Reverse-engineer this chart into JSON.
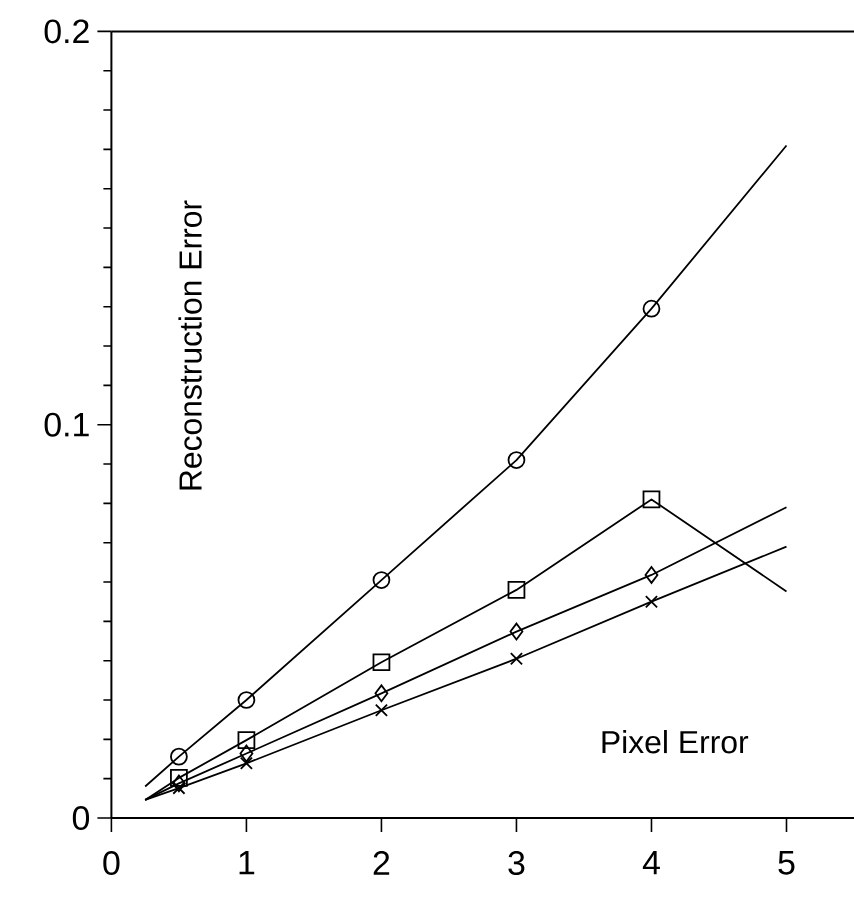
{
  "chart_data": {
    "type": "line",
    "xlabel": "Pixel Error",
    "ylabel": "Reconstruction Error",
    "xlim": [
      0,
      5.5
    ],
    "ylim": [
      0,
      0.2
    ],
    "xticks": [
      0,
      1,
      2,
      3,
      4,
      5
    ],
    "yticks": [
      0,
      {
        "value": 0.01,
        "label": null
      },
      {
        "value": 0.02,
        "label": null
      },
      {
        "value": 0.03,
        "label": null
      },
      {
        "value": 0.04,
        "label": null
      },
      {
        "value": 0.05,
        "label": null
      },
      {
        "value": 0.06,
        "label": null
      },
      {
        "value": 0.07,
        "label": null
      },
      {
        "value": 0.08,
        "label": null
      },
      {
        "value": 0.09,
        "label": null
      },
      0.1,
      {
        "value": 0.11,
        "label": null
      },
      {
        "value": 0.12,
        "label": null
      },
      {
        "value": 0.13,
        "label": null
      },
      {
        "value": 0.14,
        "label": null
      },
      {
        "value": 0.15,
        "label": null
      },
      {
        "value": 0.16,
        "label": null
      },
      {
        "value": 0.17,
        "label": null
      },
      {
        "value": 0.18,
        "label": null
      },
      {
        "value": 0.19,
        "label": null
      },
      0.2
    ],
    "grid": false,
    "series": [
      {
        "marker": "none",
        "color": "#000000",
        "x": [
          0.25,
          0.5,
          1,
          2,
          3,
          4,
          5
        ],
        "values": [
          0.008,
          0.0156,
          0.03,
          0.0605,
          0.091,
          0.1295,
          0.171
        ]
      },
      {
        "type": "scatter",
        "marker": "circle",
        "color": "#000000",
        "x": [
          0.5,
          1,
          2,
          3,
          4
        ],
        "values": [
          0.0156,
          0.03,
          0.0605,
          0.091,
          0.1295
        ]
      },
      {
        "marker": "none",
        "color": "#000000",
        "x": [
          0.25,
          0.5,
          1,
          2,
          3,
          4,
          5
        ],
        "values": [
          0.0046,
          0.0102,
          0.0198,
          0.0396,
          0.058,
          0.081,
          0.0576
        ]
      },
      {
        "type": "scatter",
        "marker": "square",
        "color": "#000000",
        "x": [
          0.5,
          1,
          2,
          3,
          4
        ],
        "values": [
          0.0102,
          0.0198,
          0.0396,
          0.058,
          0.081
        ]
      },
      {
        "marker": "none",
        "color": "#000000",
        "x": [
          0.25,
          0.5,
          1,
          2,
          3,
          4,
          5
        ],
        "values": [
          0.0046,
          0.0088,
          0.0164,
          0.0317,
          0.0474,
          0.0618,
          0.079
        ]
      },
      {
        "type": "scatter",
        "marker": "diamond",
        "color": "#000000",
        "x": [
          0.5,
          1,
          2,
          3,
          4
        ],
        "values": [
          0.0088,
          0.0164,
          0.0317,
          0.0474,
          0.0618
        ]
      },
      {
        "marker": "none",
        "color": "#000000",
        "x": [
          0.25,
          0.5,
          1,
          2,
          3,
          4,
          5
        ],
        "values": [
          0.0046,
          0.0076,
          0.0139,
          0.0274,
          0.0405,
          0.055,
          0.069
        ]
      },
      {
        "type": "scatter",
        "marker": "cross",
        "color": "#000000",
        "x": [
          0.5,
          1,
          2,
          3,
          4
        ],
        "values": [
          0.0076,
          0.0139,
          0.0274,
          0.0405,
          0.055
        ]
      }
    ]
  }
}
